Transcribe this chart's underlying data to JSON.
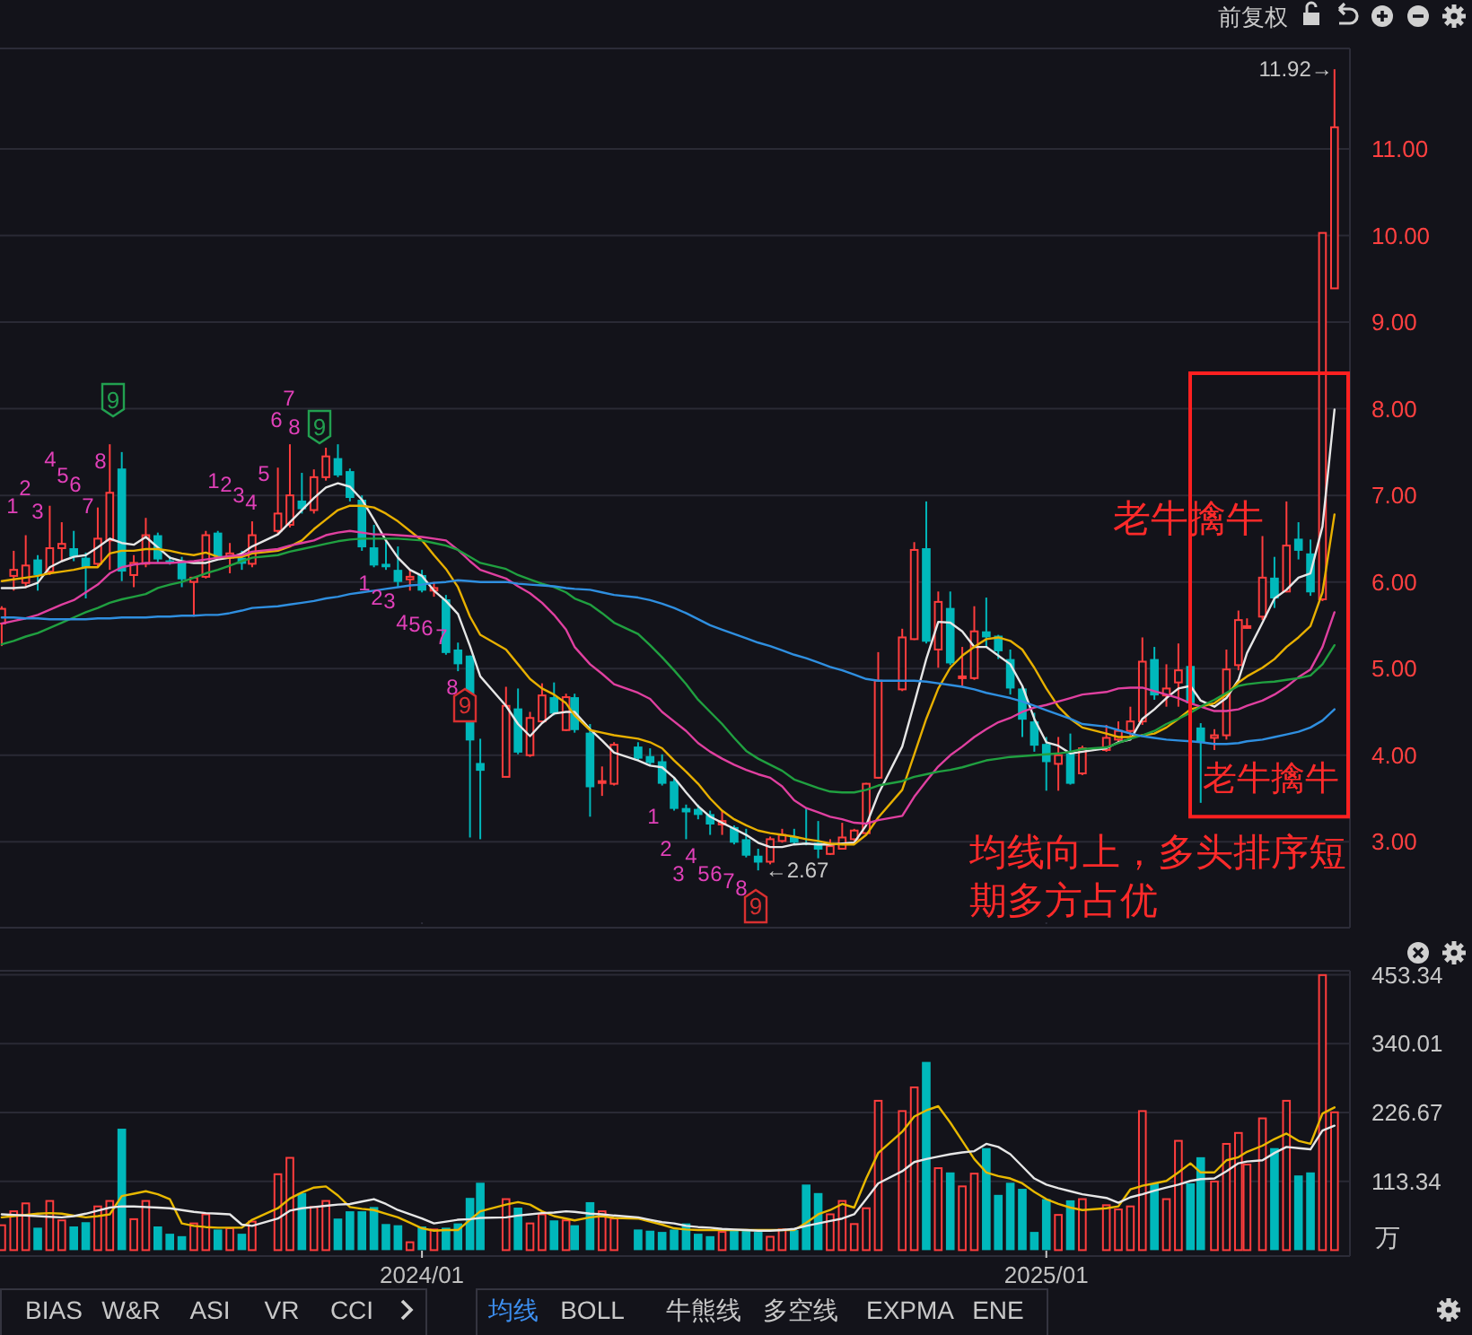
{
  "chart_data": [
    {
      "type": "candlestick",
      "x": [
        "2023-05-05",
        "2023-05-12",
        "2023-05-19",
        "2023-05-26",
        "2023-06-02",
        "2023-06-09",
        "2023-06-16",
        "2023-06-23",
        "2023-06-30",
        "2023-07-07",
        "2023-07-14",
        "2023-07-21",
        "2023-07-28",
        "2023-08-04",
        "2023-08-11",
        "2023-08-18",
        "2023-08-25",
        "2023-09-01",
        "2023-09-08",
        "2023-09-15",
        "2023-09-22",
        "2023-09-28",
        "2023-10-13",
        "2023-10-20",
        "2023-10-27",
        "2023-11-03",
        "2023-11-10",
        "2023-11-17",
        "2023-11-24",
        "2023-12-01",
        "2023-12-08",
        "2023-12-15",
        "2023-12-22",
        "2023-12-29",
        "2024-01-05",
        "2024-01-12",
        "2024-01-19",
        "2024-01-26",
        "2024-02-02",
        "2024-02-08",
        "2024-02-23",
        "2024-03-01",
        "2024-03-08",
        "2024-03-15",
        "2024-03-22",
        "2024-03-29",
        "2024-04-03",
        "2024-04-12",
        "2024-04-19",
        "2024-04-26",
        "2024-05-10",
        "2024-05-17",
        "2024-05-24",
        "2024-05-31",
        "2024-06-07",
        "2024-06-14",
        "2024-06-21",
        "2024-06-28",
        "2024-07-05",
        "2024-07-12",
        "2024-07-19",
        "2024-07-26",
        "2024-08-02",
        "2024-08-09",
        "2024-08-16",
        "2024-08-23",
        "2024-08-30",
        "2024-09-06",
        "2024-09-13",
        "2024-09-20",
        "2024-09-27",
        "2024-10-11",
        "2024-10-18",
        "2024-10-25",
        "2024-11-01",
        "2024-11-08",
        "2024-11-15",
        "2024-11-22",
        "2024-11-29",
        "2024-12-06",
        "2024-12-13",
        "2024-12-20",
        "2024-12-27",
        "2025-01-03",
        "2025-01-10",
        "2025-01-17",
        "2025-01-24",
        "2025-02-07",
        "2025-02-14",
        "2025-02-21",
        "2025-02-28",
        "2025-03-07",
        "2025-03-14",
        "2025-03-21",
        "2025-03-28",
        "2025-04-03",
        "2025-04-11",
        "2025-04-18",
        "2025-04-25",
        "2025-04-30",
        "2025-05-09",
        "2025-05-16",
        "2025-05-23",
        "2025-05-30",
        "2025-06-06",
        "2025-06-13",
        "2025-06-20"
      ],
      "ohlc": [
        [
          5.52,
          5.72,
          5.26,
          5.69
        ],
        [
          6.07,
          6.36,
          5.9,
          6.14
        ],
        [
          5.99,
          6.54,
          5.93,
          6.19
        ],
        [
          6.26,
          6.31,
          5.9,
          6.08
        ],
        [
          6.12,
          6.88,
          6.08,
          6.39
        ],
        [
          6.39,
          6.69,
          6.24,
          6.44
        ],
        [
          6.39,
          6.59,
          6.24,
          6.29
        ],
        [
          6.28,
          6.34,
          5.81,
          6.17
        ],
        [
          6.21,
          6.86,
          6.17,
          6.5
        ],
        [
          6.48,
          7.59,
          6.14,
          7.03
        ],
        [
          7.31,
          7.5,
          6.01,
          6.12
        ],
        [
          6.08,
          6.31,
          5.94,
          6.22
        ],
        [
          6.21,
          6.74,
          6.17,
          6.54
        ],
        [
          6.54,
          6.57,
          6.22,
          6.26
        ],
        [
          6.25,
          6.3,
          6.2,
          6.22
        ],
        [
          6.24,
          6.29,
          5.94,
          6.03
        ],
        [
          6.0,
          6.05,
          5.6,
          6.05
        ],
        [
          6.06,
          6.59,
          6.04,
          6.54
        ],
        [
          6.57,
          6.59,
          6.27,
          6.29
        ],
        [
          6.28,
          6.45,
          6.1,
          6.33
        ],
        [
          6.28,
          6.36,
          6.14,
          6.21
        ],
        [
          6.21,
          6.7,
          6.17,
          6.54
        ],
        [
          6.59,
          7.32,
          6.56,
          6.79
        ],
        [
          6.66,
          7.59,
          6.63,
          7.0
        ],
        [
          6.94,
          7.26,
          6.79,
          6.84
        ],
        [
          6.83,
          7.3,
          6.79,
          7.21
        ],
        [
          7.21,
          7.55,
          7.17,
          7.45
        ],
        [
          7.43,
          7.59,
          7.21,
          7.23
        ],
        [
          7.28,
          7.31,
          6.93,
          6.97
        ],
        [
          6.95,
          7.0,
          6.36,
          6.4
        ],
        [
          6.4,
          6.66,
          6.17,
          6.19
        ],
        [
          6.21,
          6.47,
          6.14,
          6.17
        ],
        [
          6.14,
          6.41,
          5.94,
          6.0
        ],
        [
          6.03,
          6.14,
          5.9,
          6.06
        ],
        [
          6.08,
          6.14,
          5.88,
          5.9
        ],
        [
          5.9,
          6.0,
          5.83,
          5.93
        ],
        [
          5.8,
          5.85,
          5.16,
          5.18
        ],
        [
          5.22,
          5.3,
          4.97,
          5.05
        ],
        [
          5.15,
          5.15,
          3.05,
          4.17
        ],
        [
          3.91,
          4.19,
          3.03,
          3.82
        ],
        [
          3.75,
          4.79,
          3.75,
          4.57
        ],
        [
          4.54,
          4.77,
          4.01,
          4.03
        ],
        [
          4.0,
          4.5,
          3.98,
          4.43
        ],
        [
          4.39,
          4.83,
          4.37,
          4.69
        ],
        [
          4.67,
          4.84,
          4.46,
          4.48
        ],
        [
          4.29,
          4.71,
          4.28,
          4.67
        ],
        [
          4.67,
          4.71,
          4.26,
          4.29
        ],
        [
          4.26,
          4.36,
          3.29,
          3.63
        ],
        [
          3.68,
          3.87,
          3.53,
          3.7
        ],
        [
          3.67,
          4.15,
          3.65,
          4.12
        ],
        [
          4.1,
          4.15,
          3.94,
          3.96
        ],
        [
          3.99,
          4.08,
          3.88,
          3.91
        ],
        [
          3.93,
          4.01,
          3.65,
          3.67
        ],
        [
          3.7,
          3.75,
          3.36,
          3.38
        ],
        [
          3.39,
          3.43,
          3.03,
          3.34
        ],
        [
          3.38,
          3.43,
          3.26,
          3.31
        ],
        [
          3.32,
          3.36,
          3.08,
          3.2
        ],
        [
          3.2,
          3.36,
          3.08,
          3.24
        ],
        [
          3.17,
          3.19,
          2.97,
          2.99
        ],
        [
          3.03,
          3.15,
          2.82,
          2.84
        ],
        [
          2.84,
          2.92,
          2.67,
          2.76
        ],
        [
          2.77,
          3.06,
          2.74,
          3.03
        ],
        [
          3.01,
          3.15,
          2.99,
          3.08
        ],
        [
          3.06,
          3.15,
          2.97,
          2.99
        ],
        [
          2.99,
          3.39,
          2.96,
          2.97
        ],
        [
          2.99,
          3.24,
          2.81,
          2.91
        ],
        [
          2.86,
          3.03,
          2.85,
          2.95
        ],
        [
          2.92,
          3.22,
          2.91,
          3.05
        ],
        [
          3.03,
          3.15,
          3.01,
          3.13
        ],
        [
          3.1,
          3.68,
          3.08,
          3.67
        ],
        [
          3.74,
          5.19,
          3.73,
          4.86
        ],
        [
          4.76,
          5.46,
          4.74,
          5.36
        ],
        [
          5.34,
          6.46,
          5.33,
          6.37
        ],
        [
          6.39,
          6.93,
          5.29,
          5.31
        ],
        [
          5.22,
          5.89,
          5.01,
          5.77
        ],
        [
          5.7,
          5.89,
          5.04,
          5.06
        ],
        [
          4.89,
          5.25,
          4.8,
          4.91
        ],
        [
          4.89,
          5.72,
          4.87,
          5.43
        ],
        [
          5.43,
          5.82,
          5.25,
          5.36
        ],
        [
          5.38,
          5.39,
          5.11,
          5.2
        ],
        [
          5.11,
          5.22,
          4.7,
          4.77
        ],
        [
          4.77,
          4.8,
          4.21,
          4.41
        ],
        [
          4.39,
          4.49,
          4.04,
          4.11
        ],
        [
          4.13,
          4.21,
          3.59,
          3.92
        ],
        [
          3.9,
          4.21,
          3.59,
          4.0
        ],
        [
          4.02,
          4.25,
          3.66,
          3.67
        ],
        [
          3.79,
          4.11,
          3.77,
          4.08
        ],
        [
          4.06,
          4.35,
          4.04,
          4.2
        ],
        [
          4.18,
          4.39,
          4.14,
          4.28
        ],
        [
          4.28,
          4.56,
          4.21,
          4.39
        ],
        [
          4.39,
          5.36,
          4.35,
          5.08
        ],
        [
          5.11,
          5.25,
          4.64,
          4.69
        ],
        [
          4.69,
          5.05,
          4.56,
          4.77
        ],
        [
          4.84,
          5.29,
          4.56,
          4.98
        ],
        [
          5.03,
          5.08,
          4.56,
          4.6
        ],
        [
          4.32,
          4.37,
          3.45,
          4.15
        ],
        [
          4.2,
          4.3,
          4.06,
          4.23
        ],
        [
          4.23,
          5.22,
          4.18,
          4.99
        ],
        [
          5.04,
          5.67,
          4.98,
          5.56
        ],
        [
          5.47,
          5.58,
          5.46,
          5.49
        ],
        [
          5.6,
          6.53,
          5.56,
          6.05
        ],
        [
          6.05,
          6.29,
          5.7,
          5.81
        ],
        [
          5.89,
          6.93,
          5.88,
          6.42
        ],
        [
          6.5,
          6.69,
          6.26,
          6.36
        ],
        [
          6.33,
          6.49,
          5.84,
          5.88
        ],
        [
          5.8,
          10.03,
          5.78,
          10.03
        ],
        [
          9.39,
          11.92,
          9.39,
          11.25
        ]
      ],
      "colors": [
        "#ff3d3d",
        "#ff3d3d",
        "#ff3d3d",
        "#00b8bb",
        "#ff3d3d",
        "#ff3d3d",
        "#00b8bb",
        "#00b8bb",
        "#ff3d3d",
        "#ff3d3d",
        "#00b8bb",
        "#ff3d3d",
        "#ff3d3d",
        "#00b8bb",
        "#00b8bb",
        "#00b8bb",
        "#ff3d3d",
        "#ff3d3d",
        "#00b8bb",
        "#ff3d3d",
        "#00b8bb",
        "#ff3d3d",
        "#ff3d3d",
        "#ff3d3d",
        "#00b8bb",
        "#ff3d3d",
        "#ff3d3d",
        "#00b8bb",
        "#00b8bb",
        "#00b8bb",
        "#00b8bb",
        "#00b8bb",
        "#00b8bb",
        "#ff3d3d",
        "#00b8bb",
        "#ff3d3d",
        "#00b8bb",
        "#00b8bb",
        "#00b8bb",
        "#00b8bb",
        "#ff3d3d",
        "#00b8bb",
        "#ff3d3d",
        "#ff3d3d",
        "#00b8bb",
        "#ff3d3d",
        "#00b8bb",
        "#00b8bb",
        "#ff3d3d",
        "#ff3d3d",
        "#00b8bb",
        "#00b8bb",
        "#00b8bb",
        "#00b8bb",
        "#00b8bb",
        "#00b8bb",
        "#00b8bb",
        "#ff3d3d",
        "#00b8bb",
        "#00b8bb",
        "#00b8bb",
        "#ff3d3d",
        "#ff3d3d",
        "#00b8bb",
        "#00b8bb",
        "#00b8bb",
        "#ff3d3d",
        "#ff3d3d",
        "#ff3d3d",
        "#ff3d3d",
        "#ff3d3d",
        "#ff3d3d",
        "#ff3d3d",
        "#00b8bb",
        "#ff3d3d",
        "#00b8bb",
        "#ff3d3d",
        "#ff3d3d",
        "#00b8bb",
        "#00b8bb",
        "#00b8bb",
        "#00b8bb",
        "#00b8bb",
        "#00b8bb",
        "#ff3d3d",
        "#00b8bb",
        "#ff3d3d",
        "#ff3d3d",
        "#ff3d3d",
        "#ff3d3d",
        "#ff3d3d",
        "#00b8bb",
        "#ff3d3d",
        "#ff3d3d",
        "#00b8bb",
        "#00b8bb",
        "#ff3d3d",
        "#ff3d3d",
        "#ff3d3d",
        "#ff3d3d",
        "#ff3d3d",
        "#00b8bb",
        "#ff3d3d",
        "#00b8bb",
        "#00b8bb",
        "#ff3d3d",
        "#ff3d3d"
      ],
      "series": [
        {
          "type": "line",
          "color": "#e6e6e6",
          "values": [
            5.93,
            5.93,
            5.94,
            5.99,
            6.17,
            6.24,
            6.29,
            6.31,
            6.4,
            6.5,
            6.45,
            6.43,
            6.52,
            6.4,
            6.28,
            6.24,
            6.22,
            6.22,
            6.26,
            6.28,
            6.33,
            6.41,
            6.55,
            6.69,
            6.83,
            6.97,
            7.09,
            7.14,
            7.1,
            6.95,
            6.72,
            6.48,
            6.28,
            6.14,
            6.07,
            5.9,
            5.78,
            5.63,
            5.26,
            4.91,
            4.57,
            4.36,
            4.22,
            4.37,
            4.48,
            4.5,
            4.5,
            4.3,
            4.17,
            4.03,
            3.94,
            3.88,
            3.86,
            3.74,
            3.57,
            3.41,
            3.29,
            3.22,
            3.15,
            3.08,
            2.99,
            2.94,
            2.94,
            2.97,
            2.98,
            2.97,
            2.97,
            2.98,
            2.99,
            3.19,
            3.55,
            4.1,
            4.6,
            5.11,
            5.54,
            5.53,
            5.43,
            5.25,
            5.25,
            5.15,
            5.05,
            4.8,
            4.42,
            4.15,
            4.11,
            4.02,
            4.04,
            4.08,
            4.15,
            4.18,
            4.42,
            4.53,
            4.66,
            4.77,
            4.8,
            4.63,
            4.56,
            4.66,
            4.87,
            5.18,
            5.53,
            5.81,
            5.91,
            6.05,
            6.1,
            6.64,
            7.99
          ]
        },
        {
          "type": "line",
          "color": "#e8b000",
          "values": [
            6.01,
            6.03,
            6.05,
            6.07,
            6.1,
            6.12,
            6.14,
            6.17,
            6.17,
            6.33,
            6.36,
            6.36,
            6.38,
            6.38,
            6.36,
            6.33,
            6.31,
            6.34,
            6.29,
            6.28,
            6.29,
            6.33,
            6.36,
            6.41,
            6.48,
            6.61,
            6.72,
            6.83,
            6.88,
            6.88,
            6.86,
            6.79,
            6.7,
            6.59,
            6.48,
            6.31,
            6.15,
            5.94,
            5.6,
            5.39,
            5.22,
            5.05,
            4.88,
            4.77,
            4.7,
            4.6,
            4.46,
            4.29,
            4.26,
            4.23,
            4.19,
            4.15,
            4.08,
            3.94,
            3.81,
            3.67,
            3.5,
            3.36,
            3.26,
            3.19,
            3.13,
            3.1,
            3.08,
            3.06,
            3.03,
            3.01,
            2.98,
            2.97,
            2.97,
            3.08,
            3.28,
            3.6,
            4.01,
            4.42,
            4.77,
            5.01,
            5.15,
            5.25,
            5.34,
            5.36,
            5.32,
            5.22,
            5.01,
            4.77,
            4.56,
            4.42,
            4.32,
            4.25,
            4.21,
            4.21,
            4.23,
            4.25,
            4.32,
            4.42,
            4.53,
            4.56,
            4.6,
            4.7,
            4.84,
            4.91,
            5.01,
            5.11,
            5.25,
            5.36,
            5.49,
            5.88,
            6.78
          ]
        },
        {
          "type": "line",
          "color": "#e040a0",
          "values": [
            5.52,
            5.55,
            5.58,
            5.62,
            5.68,
            5.74,
            5.79,
            5.88,
            5.97,
            6.1,
            6.17,
            6.2,
            6.22,
            6.22,
            6.22,
            6.23,
            6.24,
            6.26,
            6.28,
            6.3,
            6.31,
            6.35,
            6.38,
            6.42,
            6.45,
            6.48,
            6.54,
            6.57,
            6.59,
            6.57,
            6.55,
            6.55,
            6.54,
            6.53,
            6.52,
            6.5,
            6.48,
            6.37,
            6.24,
            6.14,
            6.04,
            5.95,
            5.87,
            5.76,
            5.62,
            5.45,
            5.25,
            5.05,
            4.94,
            4.82,
            4.72,
            4.65,
            4.5,
            4.39,
            4.28,
            4.14,
            4.04,
            3.96,
            3.89,
            3.83,
            3.78,
            3.74,
            3.64,
            3.48,
            3.39,
            3.34,
            3.29,
            3.26,
            3.22,
            3.21,
            3.25,
            3.3,
            3.52,
            3.7,
            3.87,
            4.0,
            4.1,
            4.21,
            4.3,
            4.38,
            4.43,
            4.5,
            4.55,
            4.58,
            4.62,
            4.66,
            4.7,
            4.73,
            4.77,
            4.78,
            4.78,
            4.74,
            4.7,
            4.66,
            4.6,
            4.56,
            4.51,
            4.51,
            4.53,
            4.57,
            4.63,
            4.7,
            4.79,
            4.9,
            4.99,
            5.25,
            5.65
          ]
        },
        {
          "type": "line",
          "color": "#20a040",
          "values": [
            5.28,
            5.32,
            5.37,
            5.41,
            5.47,
            5.53,
            5.59,
            5.65,
            5.7,
            5.76,
            5.8,
            5.83,
            5.86,
            5.93,
            5.97,
            6.0,
            6.05,
            6.1,
            6.14,
            6.19,
            6.24,
            6.28,
            6.31,
            6.35,
            6.38,
            6.41,
            6.44,
            6.47,
            6.49,
            6.5,
            6.5,
            6.5,
            6.5,
            6.49,
            6.48,
            6.45,
            6.42,
            6.37,
            6.29,
            6.22,
            6.15,
            6.08,
            6.03,
            5.98,
            5.94,
            5.88,
            5.81,
            5.74,
            5.64,
            5.53,
            5.4,
            5.27,
            5.13,
            4.98,
            4.82,
            4.64,
            4.5,
            4.36,
            4.2,
            4.05,
            3.96,
            3.89,
            3.82,
            3.72,
            3.67,
            3.62,
            3.58,
            3.57,
            3.57,
            3.6,
            3.65,
            3.7,
            3.75,
            3.78,
            3.81,
            3.83,
            3.86,
            3.9,
            3.94,
            3.96,
            3.98,
            3.99,
            4.0,
            4.01,
            4.02,
            4.04,
            4.07,
            4.09,
            4.14,
            4.19,
            4.23,
            4.28,
            4.36,
            4.42,
            4.49,
            4.56,
            4.64,
            4.72,
            4.8,
            4.82,
            4.84,
            4.85,
            4.87,
            4.89,
            4.92,
            5.05,
            5.27
          ]
        },
        {
          "type": "line",
          "color": "#2f8fe0",
          "values": [
            5.59,
            5.59,
            5.58,
            5.58,
            5.57,
            5.57,
            5.57,
            5.57,
            5.58,
            5.58,
            5.59,
            5.59,
            5.59,
            5.6,
            5.6,
            5.61,
            5.61,
            5.62,
            5.62,
            5.64,
            5.67,
            5.7,
            5.72,
            5.74,
            5.76,
            5.78,
            5.81,
            5.83,
            5.86,
            5.88,
            5.9,
            5.92,
            5.94,
            5.96,
            5.97,
            5.99,
            6.0,
            6.02,
            6.01,
            6.0,
            6.0,
            5.98,
            5.97,
            5.96,
            5.95,
            5.93,
            5.92,
            5.91,
            5.88,
            5.85,
            5.82,
            5.79,
            5.75,
            5.7,
            5.64,
            5.57,
            5.5,
            5.45,
            5.4,
            5.35,
            5.3,
            5.26,
            5.21,
            5.16,
            5.12,
            5.07,
            5.02,
            4.98,
            4.93,
            4.88,
            4.86,
            4.86,
            4.86,
            4.85,
            4.83,
            4.81,
            4.79,
            4.76,
            4.72,
            4.69,
            4.66,
            4.62,
            4.57,
            4.52,
            4.47,
            4.42,
            4.36,
            4.33,
            4.29,
            4.25,
            4.22,
            4.2,
            4.18,
            4.17,
            4.16,
            4.15,
            4.13,
            4.13,
            4.14,
            4.16,
            4.18,
            4.21,
            4.24,
            4.27,
            4.32,
            4.4,
            4.53
          ]
        }
      ],
      "ylim": [
        2.05,
        12.16
      ],
      "yticks": [
        {
          "value": 3,
          "label": "3.00"
        },
        {
          "value": 4,
          "label": "4.00"
        },
        {
          "value": 5,
          "label": "5.00"
        },
        {
          "value": 6,
          "label": "6.00"
        },
        {
          "value": 7,
          "label": "7.00"
        },
        {
          "value": 8,
          "label": "8.00"
        },
        {
          "value": 9,
          "label": "9.00"
        },
        {
          "value": 10,
          "label": "10.00"
        },
        {
          "value": 11,
          "label": "11.00"
        }
      ],
      "grid": "y",
      "tick_labels": "y",
      "xlim": [
        "2023-05-04",
        "2025-06-29"
      ],
      "xticks": [
        {
          "value": "2024-01-05",
          "label": null
        },
        {
          "value": "2025-01-03",
          "label": null
        }
      ],
      "annotations": [
        "前复权",
        "老牛擒牛",
        "老牛擒牛",
        "均线向上，多头排序短期多方占优",
        {
          "text": "11.92→",
          "x": "2025-06-20",
          "y": 11.92
        },
        {
          "text": "←2.67",
          "x": "2024-07-19",
          "y": 2.67
        },
        "1",
        "2",
        "3",
        "4",
        "5",
        "6",
        "7",
        "8",
        "9",
        "1",
        "2",
        "3",
        "4",
        "5",
        "6",
        "7",
        "8",
        "9",
        "1",
        "2",
        "3",
        "4",
        "5",
        "6",
        "7",
        "8",
        "9",
        "1",
        "2",
        "3",
        "4",
        "5",
        "6",
        "7",
        "8",
        "9"
      ]
    },
    {
      "type": "bar",
      "x": [
        "2023-05-05",
        "2023-05-12",
        "2023-05-19",
        "2023-05-26",
        "2023-06-02",
        "2023-06-09",
        "2023-06-16",
        "2023-06-23",
        "2023-06-30",
        "2023-07-07",
        "2023-07-14",
        "2023-07-21",
        "2023-07-28",
        "2023-08-04",
        "2023-08-11",
        "2023-08-18",
        "2023-08-25",
        "2023-09-01",
        "2023-09-08",
        "2023-09-15",
        "2023-09-22",
        "2023-09-28",
        "2023-10-13",
        "2023-10-20",
        "2023-10-27",
        "2023-11-03",
        "2023-11-10",
        "2023-11-17",
        "2023-11-24",
        "2023-12-01",
        "2023-12-08",
        "2023-12-15",
        "2023-12-22",
        "2023-12-29",
        "2024-01-05",
        "2024-01-12",
        "2024-01-19",
        "2024-01-26",
        "2024-02-02",
        "2024-02-08",
        "2024-02-23",
        "2024-03-01",
        "2024-03-08",
        "2024-03-15",
        "2024-03-22",
        "2024-03-29",
        "2024-04-03",
        "2024-04-12",
        "2024-04-19",
        "2024-04-26",
        "2024-05-10",
        "2024-05-17",
        "2024-05-24",
        "2024-05-31",
        "2024-06-07",
        "2024-06-14",
        "2024-06-21",
        "2024-06-28",
        "2024-07-05",
        "2024-07-12",
        "2024-07-19",
        "2024-07-26",
        "2024-08-02",
        "2024-08-09",
        "2024-08-16",
        "2024-08-23",
        "2024-08-30",
        "2024-09-06",
        "2024-09-13",
        "2024-09-20",
        "2024-09-27",
        "2024-10-11",
        "2024-10-18",
        "2024-10-25",
        "2024-11-01",
        "2024-11-08",
        "2024-11-15",
        "2024-11-22",
        "2024-11-29",
        "2024-12-06",
        "2024-12-13",
        "2024-12-20",
        "2024-12-27",
        "2025-01-03",
        "2025-01-10",
        "2025-01-17",
        "2025-01-24",
        "2025-02-07",
        "2025-02-14",
        "2025-02-21",
        "2025-02-28",
        "2025-03-07",
        "2025-03-14",
        "2025-03-21",
        "2025-03-28",
        "2025-04-03",
        "2025-04-11",
        "2025-04-18",
        "2025-04-25",
        "2025-04-30",
        "2025-05-09",
        "2025-05-16",
        "2025-05-23",
        "2025-05-30",
        "2025-06-06",
        "2025-06-13",
        "2025-06-20"
      ],
      "values": [
        41,
        64,
        77,
        37,
        81,
        49,
        39,
        46,
        72,
        81,
        200,
        51,
        81,
        39,
        27,
        23,
        44,
        59,
        34,
        36,
        27,
        47,
        125,
        152,
        94,
        71,
        81,
        52,
        64,
        64,
        71,
        43,
        41,
        13,
        39,
        34,
        37,
        44,
        86,
        111,
        84,
        70,
        44,
        59,
        49,
        49,
        41,
        79,
        64,
        52,
        34,
        32,
        30,
        34,
        44,
        27,
        23,
        30,
        34,
        34,
        30,
        22,
        34,
        33,
        108,
        94,
        59,
        81,
        43,
        69,
        246,
        229,
        268,
        310,
        135,
        128,
        105,
        126,
        168,
        91,
        111,
        101,
        30,
        84,
        58,
        82,
        84,
        74,
        67,
        72,
        229,
        110,
        84,
        180,
        110,
        153,
        113,
        175,
        193,
        141,
        217,
        168,
        246,
        123,
        128,
        453,
        227
      ],
      "colors": [
        "#ff3d3d",
        "#ff3d3d",
        "#ff3d3d",
        "#00b8bb",
        "#ff3d3d",
        "#ff3d3d",
        "#00b8bb",
        "#00b8bb",
        "#ff3d3d",
        "#ff3d3d",
        "#00b8bb",
        "#ff3d3d",
        "#ff3d3d",
        "#00b8bb",
        "#00b8bb",
        "#00b8bb",
        "#ff3d3d",
        "#ff3d3d",
        "#00b8bb",
        "#ff3d3d",
        "#00b8bb",
        "#ff3d3d",
        "#ff3d3d",
        "#ff3d3d",
        "#00b8bb",
        "#ff3d3d",
        "#ff3d3d",
        "#00b8bb",
        "#00b8bb",
        "#00b8bb",
        "#00b8bb",
        "#00b8bb",
        "#00b8bb",
        "#ff3d3d",
        "#00b8bb",
        "#ff3d3d",
        "#00b8bb",
        "#00b8bb",
        "#00b8bb",
        "#00b8bb",
        "#ff3d3d",
        "#00b8bb",
        "#ff3d3d",
        "#ff3d3d",
        "#00b8bb",
        "#ff3d3d",
        "#00b8bb",
        "#00b8bb",
        "#ff3d3d",
        "#ff3d3d",
        "#00b8bb",
        "#00b8bb",
        "#00b8bb",
        "#00b8bb",
        "#00b8bb",
        "#00b8bb",
        "#00b8bb",
        "#ff3d3d",
        "#00b8bb",
        "#00b8bb",
        "#00b8bb",
        "#ff3d3d",
        "#ff3d3d",
        "#00b8bb",
        "#00b8bb",
        "#00b8bb",
        "#ff3d3d",
        "#ff3d3d",
        "#ff3d3d",
        "#ff3d3d",
        "#ff3d3d",
        "#ff3d3d",
        "#ff3d3d",
        "#00b8bb",
        "#ff3d3d",
        "#00b8bb",
        "#ff3d3d",
        "#ff3d3d",
        "#00b8bb",
        "#00b8bb",
        "#00b8bb",
        "#00b8bb",
        "#00b8bb",
        "#00b8bb",
        "#ff3d3d",
        "#00b8bb",
        "#ff3d3d",
        "#ff3d3d",
        "#ff3d3d",
        "#ff3d3d",
        "#ff3d3d",
        "#00b8bb",
        "#ff3d3d",
        "#ff3d3d",
        "#00b8bb",
        "#00b8bb",
        "#ff3d3d",
        "#ff3d3d",
        "#ff3d3d",
        "#ff3d3d",
        "#ff3d3d",
        "#00b8bb",
        "#ff3d3d",
        "#00b8bb",
        "#00b8bb",
        "#ff3d3d",
        "#ff3d3d"
      ],
      "series": [
        {
          "type": "line",
          "color": "#e8b800",
          "values": [
            54,
            56,
            58,
            60,
            61,
            60,
            57,
            54,
            56,
            59,
            89,
            93,
            97,
            92,
            84,
            44,
            40,
            38,
            37,
            37,
            37,
            50,
            69,
            85,
            95,
            103,
            105,
            90,
            71,
            68,
            66,
            60,
            54,
            45,
            36,
            32,
            33,
            33,
            50,
            64,
            75,
            79,
            75,
            64,
            56,
            52,
            49,
            54,
            56,
            53,
            52,
            47,
            42,
            36,
            34,
            33,
            33,
            33,
            33,
            33,
            33,
            33,
            33,
            33,
            45,
            59,
            66,
            76,
            70,
            118,
            160,
            195,
            220,
            230,
            237,
            210,
            180,
            150,
            128,
            122,
            118,
            110,
            96,
            84,
            76,
            70,
            66,
            69,
            72,
            100,
            106,
            110,
            114,
            128,
            143,
            128,
            128,
            148,
            153,
            162,
            172,
            183,
            192,
            180,
            175,
            225,
            235
          ]
        },
        {
          "type": "line",
          "color": "#e6e6e6",
          "values": [
            59,
            58,
            57,
            56,
            55,
            54,
            56,
            60,
            65,
            70,
            72,
            72,
            71,
            70,
            69,
            66,
            63,
            61,
            60,
            59,
            42,
            40,
            52,
            65,
            69,
            71,
            73,
            75,
            76,
            80,
            84,
            76,
            66,
            59,
            52,
            44,
            47,
            50,
            51,
            53,
            54,
            57,
            59,
            61,
            62,
            64,
            63,
            60,
            59,
            57,
            54,
            50,
            46,
            44,
            40,
            38,
            37,
            35,
            34,
            33,
            32,
            32,
            33,
            35,
            40,
            44,
            48,
            52,
            59,
            84,
            110,
            130,
            145,
            150,
            154,
            158,
            161,
            163,
            175,
            170,
            158,
            138,
            118,
            108,
            102,
            97,
            92,
            86,
            78,
            87,
            92,
            98,
            103,
            108,
            114,
            117,
            118,
            130,
            143,
            146,
            148,
            160,
            170,
            168,
            166,
            197,
            205
          ]
        }
      ],
      "ylim": [
        0,
        453.34
      ],
      "xlim": [
        "2023-05-04",
        "2025-06-29"
      ],
      "yticks": [
        113.34,
        226.67,
        340.01,
        453.34
      ],
      "xticks": [
        {
          "value": "2024-01-05",
          "label": "2024/01"
        },
        {
          "value": "2025-01-03",
          "label": "2025/01"
        }
      ],
      "ylabel": "万",
      "grid": "y",
      "annotations": [
        "BIAS",
        "W&R",
        "ASI",
        "VR",
        "CCI",
        "均线",
        "BOLL",
        "牛熊线",
        "多空线",
        "EXPMA",
        "ENE"
      ]
    }
  ]
}
